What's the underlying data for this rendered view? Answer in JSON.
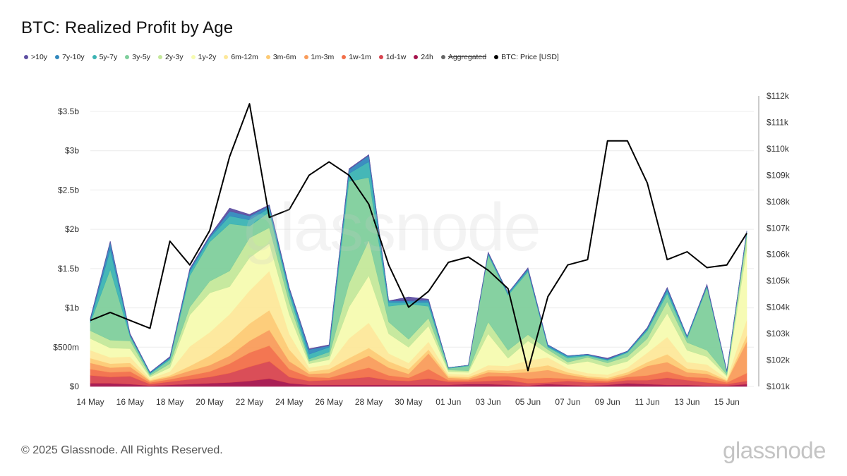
{
  "page": {
    "footer": "© 2025 Glassnode. All Rights Reserved.",
    "brand": "glassnode",
    "watermark": "glassnode"
  },
  "chart_data": {
    "type": "area",
    "title": "BTC: Realized Profit by Age",
    "legend": [
      {
        "name": ">10y",
        "color": "#5e4fa2"
      },
      {
        "name": "7y-10y",
        "color": "#3288bd"
      },
      {
        "name": "5y-7y",
        "color": "#3bb3b3"
      },
      {
        "name": "3y-5y",
        "color": "#7fcf9c"
      },
      {
        "name": "2y-3y",
        "color": "#c4e89a"
      },
      {
        "name": "1y-2y",
        "color": "#f6fbb0"
      },
      {
        "name": "6m-12m",
        "color": "#fde89a"
      },
      {
        "name": "3m-6m",
        "color": "#fdca74"
      },
      {
        "name": "1m-3m",
        "color": "#f99c5b"
      },
      {
        "name": "1w-1m",
        "color": "#f26f49"
      },
      {
        "name": "1d-1w",
        "color": "#d8444f"
      },
      {
        "name": "24h",
        "color": "#a5144d"
      },
      {
        "name": "Aggregated",
        "color": "#666666",
        "disabled": true
      },
      {
        "name": "BTC: Price [USD]",
        "color": "#000000"
      }
    ],
    "x_labels": [
      "14 May",
      "16 May",
      "18 May",
      "20 May",
      "22 May",
      "24 May",
      "26 May",
      "28 May",
      "30 May",
      "01 Jun",
      "03 Jun",
      "05 Jun",
      "07 Jun",
      "09 Jun",
      "11 Jun",
      "13 Jun",
      "15 Jun"
    ],
    "y_left": {
      "min": 0,
      "max": 3.5,
      "ticks": [
        0,
        0.5,
        1,
        1.5,
        2,
        2.5,
        3,
        3.5
      ],
      "labels": [
        "$0",
        "$500m",
        "$1b",
        "$1.5b",
        "$2b",
        "$2.5b",
        "$3b",
        "$3.5b"
      ],
      "unit": "USD billions"
    },
    "y_right": {
      "min": 101,
      "max": 112,
      "ticks": [
        101,
        102,
        103,
        104,
        105,
        106,
        107,
        108,
        109,
        110,
        111,
        112
      ],
      "labels": [
        "$101k",
        "$102k",
        "$103k",
        "$104k",
        "$105k",
        "$106k",
        "$107k",
        "$108k",
        "$109k",
        "$110k",
        "$111k",
        "$112k"
      ],
      "unit": "USD thousands"
    },
    "days": 34,
    "series": [
      {
        "name": "24h",
        "color": "#a5144d",
        "values": [
          0.04,
          0.04,
          0.03,
          0.01,
          0.02,
          0.03,
          0.04,
          0.05,
          0.07,
          0.1,
          0.04,
          0.02,
          0.02,
          0.02,
          0.02,
          0.02,
          0.02,
          0.02,
          0.02,
          0.03,
          0.03,
          0.02,
          0.01,
          0.03,
          0.02,
          0.01,
          0.02,
          0.04,
          0.03,
          0.02,
          0.02,
          0.01,
          0.01,
          0.03
        ]
      },
      {
        "name": "1d-1w",
        "color": "#d8444f",
        "values": [
          0.1,
          0.08,
          0.1,
          0.02,
          0.04,
          0.06,
          0.08,
          0.12,
          0.18,
          0.22,
          0.08,
          0.05,
          0.06,
          0.08,
          0.1,
          0.06,
          0.05,
          0.08,
          0.04,
          0.03,
          0.04,
          0.06,
          0.03,
          0.02,
          0.05,
          0.04,
          0.03,
          0.04,
          0.05,
          0.09,
          0.06,
          0.04,
          0.02,
          0.04
        ]
      },
      {
        "name": "1w-1m",
        "color": "#f26f49",
        "values": [
          0.08,
          0.06,
          0.06,
          0.02,
          0.03,
          0.05,
          0.07,
          0.12,
          0.18,
          0.2,
          0.1,
          0.05,
          0.03,
          0.08,
          0.12,
          0.06,
          0.04,
          0.12,
          0.02,
          0.02,
          0.06,
          0.05,
          0.06,
          0.06,
          0.03,
          0.03,
          0.02,
          0.04,
          0.06,
          0.08,
          0.04,
          0.06,
          0.02,
          0.1
        ]
      },
      {
        "name": "1m-3m",
        "color": "#f99c5b",
        "values": [
          0.08,
          0.06,
          0.06,
          0.02,
          0.03,
          0.06,
          0.08,
          0.1,
          0.15,
          0.2,
          0.1,
          0.04,
          0.06,
          0.1,
          0.15,
          0.1,
          0.05,
          0.2,
          0.03,
          0.02,
          0.05,
          0.04,
          0.08,
          0.1,
          0.05,
          0.03,
          0.02,
          0.03,
          0.12,
          0.12,
          0.06,
          0.05,
          0.02,
          0.4
        ]
      },
      {
        "name": "3m-6m",
        "color": "#fdca74",
        "values": [
          0.06,
          0.05,
          0.05,
          0.01,
          0.02,
          0.06,
          0.12,
          0.18,
          0.22,
          0.25,
          0.15,
          0.03,
          0.05,
          0.08,
          0.1,
          0.08,
          0.06,
          0.05,
          0.02,
          0.02,
          0.03,
          0.03,
          0.05,
          0.06,
          0.03,
          0.02,
          0.02,
          0.03,
          0.05,
          0.1,
          0.05,
          0.04,
          0.01,
          0.08
        ]
      },
      {
        "name": "6m-12m",
        "color": "#fde89a",
        "values": [
          0.1,
          0.08,
          0.08,
          0.02,
          0.05,
          0.25,
          0.3,
          0.35,
          0.42,
          0.5,
          0.2,
          0.05,
          0.06,
          0.25,
          0.32,
          0.1,
          0.08,
          0.1,
          0.03,
          0.03,
          0.06,
          0.06,
          0.1,
          0.1,
          0.05,
          0.04,
          0.04,
          0.06,
          0.12,
          0.22,
          0.08,
          0.08,
          0.02,
          0.2
        ]
      },
      {
        "name": "1y-2y",
        "color": "#f6fbb0",
        "values": [
          0.15,
          0.12,
          0.1,
          0.02,
          0.05,
          0.4,
          0.5,
          0.35,
          0.42,
          0.35,
          0.25,
          0.05,
          0.06,
          0.4,
          0.6,
          0.25,
          0.2,
          0.2,
          0.03,
          0.03,
          0.4,
          0.1,
          0.25,
          0.05,
          0.05,
          0.15,
          0.1,
          0.08,
          0.1,
          0.3,
          0.15,
          0.1,
          0.03,
          0.9
        ]
      },
      {
        "name": "2y-3y",
        "color": "#c4e89a",
        "values": [
          0.1,
          0.1,
          0.1,
          0.02,
          0.05,
          0.1,
          0.15,
          0.2,
          0.25,
          0.2,
          0.15,
          0.03,
          0.05,
          0.3,
          0.45,
          0.15,
          0.1,
          0.1,
          0.02,
          0.02,
          0.15,
          0.1,
          0.08,
          0.05,
          0.03,
          0.05,
          0.05,
          0.06,
          0.08,
          0.15,
          0.1,
          0.08,
          0.02,
          0.15
        ]
      },
      {
        "name": "3y-5y",
        "color": "#7fcf9c",
        "values": [
          0.1,
          0.9,
          0.05,
          0.02,
          0.05,
          0.4,
          0.5,
          0.6,
          0.15,
          0.2,
          0.1,
          0.03,
          0.05,
          1.3,
          0.8,
          0.2,
          0.45,
          0.15,
          0.02,
          0.06,
          0.85,
          0.7,
          0.8,
          0.03,
          0.05,
          0.02,
          0.03,
          0.05,
          0.1,
          0.1,
          0.05,
          0.8,
          0.03,
          0.05
        ]
      },
      {
        "name": "5y-7y",
        "color": "#3bb3b3",
        "values": [
          0.03,
          0.25,
          0.02,
          0.01,
          0.02,
          0.05,
          0.05,
          0.1,
          0.08,
          0.05,
          0.05,
          0.06,
          0.06,
          0.1,
          0.2,
          0.05,
          0.02,
          0.05,
          0.01,
          0.01,
          0.02,
          0.02,
          0.02,
          0.01,
          0.02,
          0.01,
          0.01,
          0.01,
          0.02,
          0.04,
          0.02,
          0.02,
          0.01,
          0.02
        ]
      },
      {
        "name": "7y-10y",
        "color": "#3288bd",
        "values": [
          0.02,
          0.1,
          0.01,
          0.01,
          0.01,
          0.03,
          0.02,
          0.06,
          0.05,
          0.03,
          0.03,
          0.06,
          0.02,
          0.05,
          0.08,
          0.02,
          0.02,
          0.03,
          0.0,
          0.0,
          0.01,
          0.01,
          0.02,
          0.02,
          0.01,
          0.01,
          0.01,
          0.01,
          0.01,
          0.03,
          0.01,
          0.01,
          0.01,
          0.01
        ]
      },
      {
        "name": ">10y",
        "color": "#5e4fa2",
        "values": [
          0.01,
          0.01,
          0.01,
          0.0,
          0.01,
          0.01,
          0.01,
          0.04,
          0.02,
          0.01,
          0.01,
          0.01,
          0.01,
          0.01,
          0.01,
          0.0,
          0.05,
          0.01,
          0.0,
          0.0,
          0.01,
          0.0,
          0.01,
          0.0,
          0.0,
          0.0,
          0.01,
          0.0,
          0.01,
          0.01,
          0.0,
          0.01,
          0.0,
          0.0
        ]
      }
    ],
    "price": {
      "name": "BTC: Price [USD]",
      "unit": "USD thousands",
      "values": [
        103.5,
        103.8,
        103.5,
        103.2,
        106.5,
        105.6,
        106.9,
        109.7,
        111.7,
        107.4,
        107.7,
        109.0,
        109.5,
        109.0,
        107.9,
        105.6,
        104.0,
        104.6,
        105.7,
        105.9,
        105.4,
        104.7,
        101.6,
        104.4,
        105.6,
        105.8,
        110.3,
        110.3,
        108.7,
        105.8,
        106.1,
        105.5,
        105.6,
        106.8
      ]
    }
  }
}
